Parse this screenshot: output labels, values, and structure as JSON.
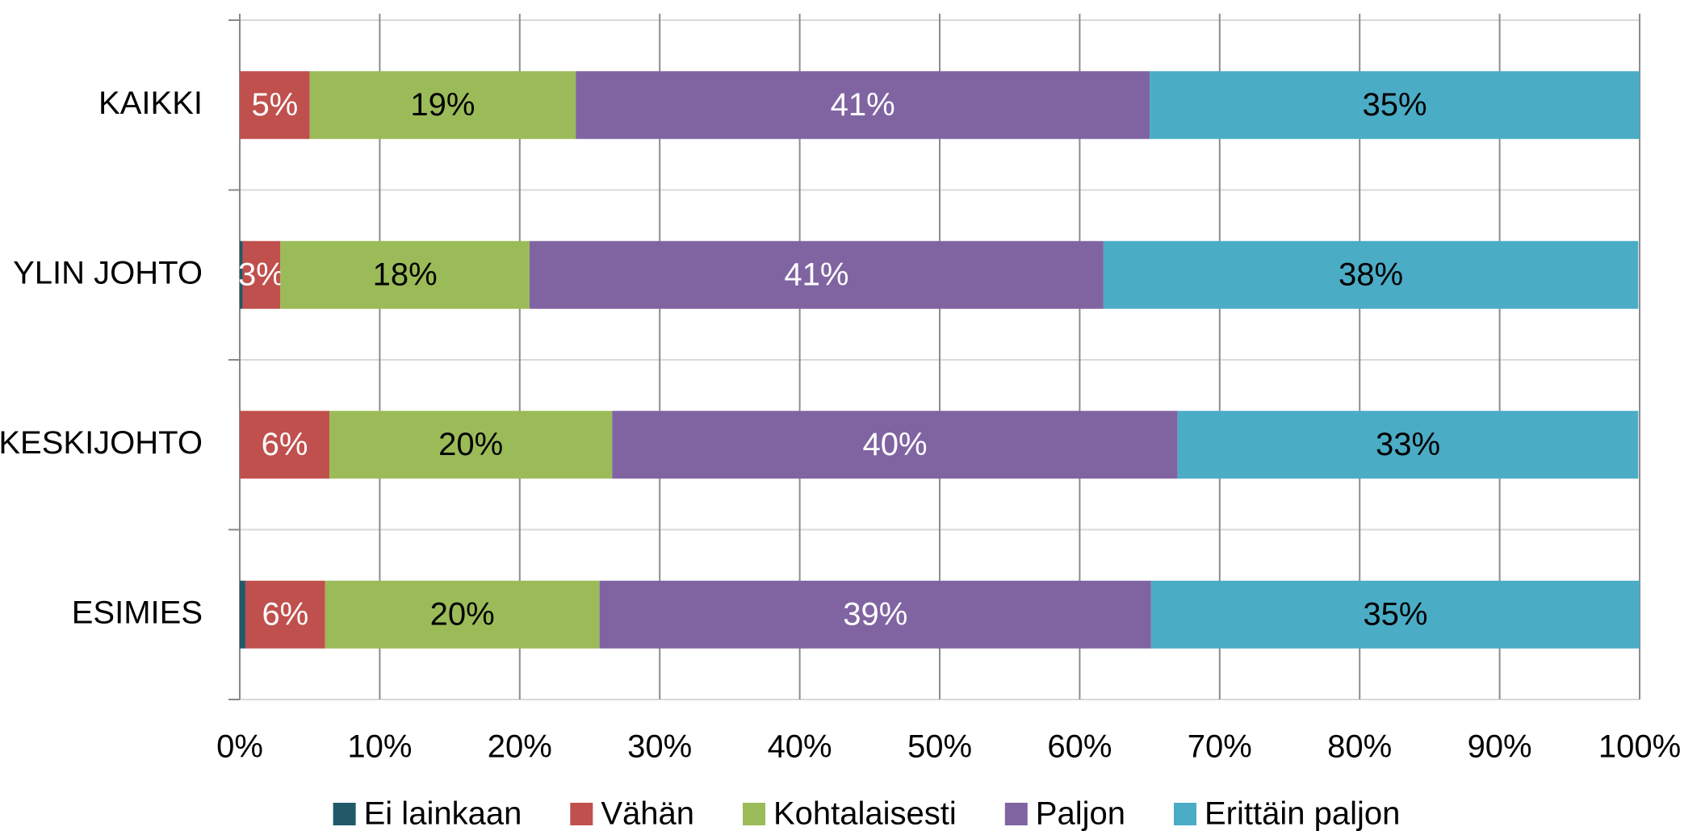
{
  "chart_data": {
    "type": "stacked_bar_horizontal",
    "categories": [
      "KAIKKI",
      "YLIN JOHTO",
      "KESKIJOHTO",
      "ESIMIES"
    ],
    "series": [
      {
        "name": "Ei lainkaan",
        "color": "#215968",
        "label_color": "#ffffff",
        "values": [
          0,
          0.2,
          0,
          0.4
        ],
        "value_labels": [
          null,
          null,
          null,
          null
        ]
      },
      {
        "name": "Vähän",
        "color": "#c0504d",
        "label_color": "#ffffff",
        "values": [
          5.0,
          2.7,
          6.4,
          5.7
        ],
        "value_labels": [
          "5%",
          "3%",
          "6%",
          "6%"
        ]
      },
      {
        "name": "Kohtalaisesti",
        "color": "#9bbb59",
        "label_color": "#000000",
        "values": [
          19.0,
          17.8,
          20.2,
          19.6
        ],
        "value_labels": [
          "19%",
          "18%",
          "20%",
          "20%"
        ]
      },
      {
        "name": "Paljon",
        "color": "#8064a2",
        "label_color": "#ffffff",
        "values": [
          41.0,
          41.0,
          40.4,
          39.4
        ],
        "value_labels": [
          "41%",
          "41%",
          "40%",
          "39%"
        ]
      },
      {
        "name": "Erittäin paljon",
        "color": "#4bacc6",
        "label_color": "#000000",
        "values": [
          35.0,
          38.2,
          32.9,
          34.9
        ],
        "value_labels": [
          "35%",
          "38%",
          "33%",
          "35%"
        ]
      }
    ],
    "xlim": [
      0,
      100
    ],
    "xticks": [
      {
        "value": 0,
        "label": "0%"
      },
      {
        "value": 10,
        "label": "10%"
      },
      {
        "value": 20,
        "label": "20%"
      },
      {
        "value": 30,
        "label": "30%"
      },
      {
        "value": 40,
        "label": "40%"
      },
      {
        "value": 50,
        "label": "50%"
      },
      {
        "value": 60,
        "label": "60%"
      },
      {
        "value": 70,
        "label": "70%"
      },
      {
        "value": 80,
        "label": "80%"
      },
      {
        "value": 90,
        "label": "90%"
      },
      {
        "value": 100,
        "label": "100%"
      }
    ],
    "grid": true,
    "legend": "bottom"
  }
}
